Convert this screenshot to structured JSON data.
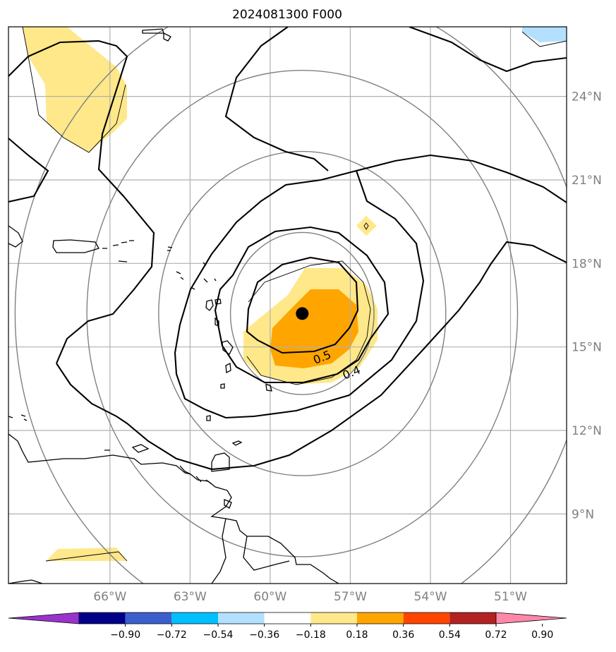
{
  "title": "2024081300 F000",
  "map": {
    "lon_range": [
      -69.8,
      -48.9
    ],
    "lat_range": [
      6.5,
      26.5
    ],
    "lat_ticks": [
      {
        "value": 24,
        "label": "24°N"
      },
      {
        "value": 21,
        "label": "21°N"
      },
      {
        "value": 18,
        "label": "18°N"
      },
      {
        "value": 15,
        "label": "15°N"
      },
      {
        "value": 12,
        "label": "12°N"
      },
      {
        "value": 9,
        "label": "9°N"
      }
    ],
    "lon_ticks": [
      {
        "value": -66,
        "label": "66°W"
      },
      {
        "value": -63,
        "label": "63°W"
      },
      {
        "value": -60,
        "label": "60°W"
      },
      {
        "value": -57,
        "label": "57°W"
      },
      {
        "value": -54,
        "label": "54°W"
      },
      {
        "value": -51,
        "label": "51°W"
      }
    ],
    "storm_center": {
      "lon": -58.8,
      "lat": 16.2
    },
    "range_ring_radii_deg": [
      2.8,
      5.6,
      8.4,
      11.2
    ],
    "contour_labels": [
      {
        "text": "0.5",
        "lon": -58.0,
        "lat": 14.5
      },
      {
        "text": "0.4",
        "lon": -56.9,
        "lat": 13.95
      }
    ],
    "grid": true,
    "colors": {
      "land_outline": "#000000",
      "grid": "#b0b0b0",
      "rings": "#808080",
      "contours": "#000000",
      "fill_0_18_to_0_36": "#ffe88a",
      "fill_0_36_to_0_54": "#ffa500",
      "fill_neg_0_36_to_neg_0_18": "#b3e0ff"
    }
  },
  "colorbar": {
    "ticks": [
      "−0.90",
      "−0.72",
      "−0.54",
      "−0.36",
      "−0.18",
      "0.18",
      "0.36",
      "0.54",
      "0.72",
      "0.90"
    ],
    "colors": [
      "#9933cc",
      "#000088",
      "#3a5fcd",
      "#00bfff",
      "#b3e0ff",
      "#ffffff",
      "#ffe88a",
      "#ffa500",
      "#ff4500",
      "#b22222",
      "#ff88aa"
    ]
  }
}
